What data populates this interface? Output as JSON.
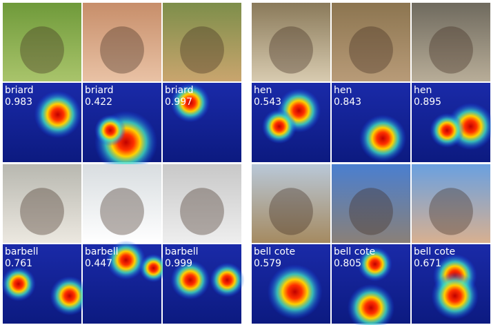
{
  "groups": [
    {
      "label": "briard",
      "scores": [
        0.983,
        0.422,
        0.997
      ]
    },
    {
      "label": "hen",
      "scores": [
        0.543,
        0.843,
        0.895
      ]
    },
    {
      "label": "barbell",
      "scores": [
        0.761,
        0.447,
        0.999
      ]
    },
    {
      "label": "bell cote",
      "scores": [
        0.579,
        0.805,
        0.671
      ]
    }
  ]
}
